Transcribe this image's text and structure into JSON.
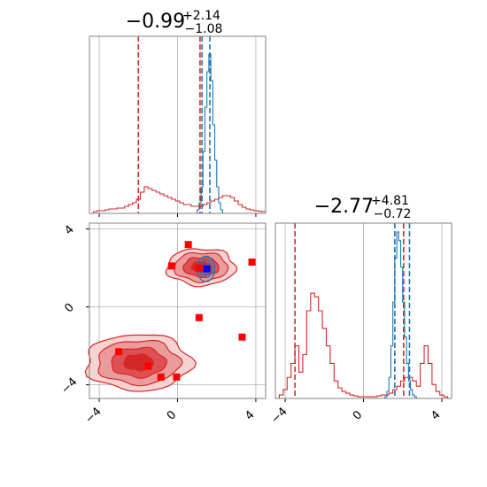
{
  "chart_data": {
    "type": "corner",
    "grid": true,
    "colors": {
      "red": "#d62728",
      "blue": "#1f77b4",
      "axis": "#808080",
      "grid": "#b0b0b0",
      "marker_red": "#ff0000",
      "marker_blue": "#0000ff"
    },
    "panels": [
      {
        "id": "p1_marginal",
        "type": "histogram-step",
        "title": {
          "main": "−0.99",
          "sup": "+2.14",
          "sub": "−1.08"
        },
        "xlim": [
          -4.5,
          4.5
        ],
        "ylim": [
          0,
          1.0
        ],
        "xticks": [
          -4,
          0,
          4
        ],
        "xtick_labels_shown": false,
        "series": [
          {
            "name": "",
            "color": "red",
            "bin_edges_start": -4.5,
            "bin_width": 0.2,
            "counts": [
              0,
              0.01,
              0.015,
              0.015,
              0.02,
              0.025,
              0.025,
              0.03,
              0.03,
              0.04,
              0.05,
              0.06,
              0.08,
              0.12,
              0.15,
              0.14,
              0.13,
              0.12,
              0.11,
              0.1,
              0.09,
              0.08,
              0.07,
              0.06,
              0.05,
              0.05,
              0.04,
              0.04,
              0.04,
              0.05,
              0.06,
              0.07,
              0.08,
              0.09,
              0.1,
              0.1,
              0.09,
              0.07,
              0.05,
              0.035,
              0.025,
              0.02,
              0.015,
              0.012,
              0.01
            ]
          },
          {
            "name": "",
            "color": "blue",
            "bin_edges_start": 0.9,
            "bin_width": 0.1,
            "counts": [
              0,
              0.02,
              0.06,
              0.15,
              0.35,
              0.6,
              0.8,
              0.9,
              0.75,
              0.5,
              0.3,
              0.15,
              0.06,
              0.02,
              0
            ]
          }
        ],
        "vlines": [
          {
            "x": -2.0,
            "color": "red"
          },
          {
            "x": 1.15,
            "color": "red"
          },
          {
            "x": 1.25,
            "color": "blue"
          },
          {
            "x": 1.65,
            "color": "blue"
          }
        ]
      },
      {
        "id": "p2_joint",
        "type": "contour",
        "xlim": [
          -4.5,
          4.5
        ],
        "ylim": [
          -4.7,
          4.3
        ],
        "xticks": [
          -4,
          0,
          4
        ],
        "yticks": [
          -4,
          0,
          4
        ],
        "xtick_labels": [
          "−4",
          "0",
          "4"
        ],
        "ytick_labels": [
          "−4",
          "0",
          "4"
        ],
        "red_markers": [
          [
            0.55,
            3.2
          ],
          [
            -0.3,
            2.1
          ],
          [
            1.1,
            2.0
          ],
          [
            3.8,
            2.3
          ],
          [
            1.1,
            -0.55
          ],
          [
            3.3,
            -1.55
          ],
          [
            -3.0,
            -2.3
          ],
          [
            -1.5,
            -3.05
          ],
          [
            -0.85,
            -3.6
          ],
          [
            -0.05,
            -3.6
          ]
        ],
        "blue_markers": [
          [
            1.5,
            1.95
          ]
        ],
        "red_modes": [
          {
            "cx": 1.2,
            "cy": 2.05,
            "rx": 1.75,
            "ry": 0.95
          },
          {
            "cx": -2.0,
            "cy": -2.85,
            "rx": 2.7,
            "ry": 1.45
          }
        ],
        "blue_modes": [
          {
            "cx": 1.45,
            "cy": 1.95,
            "rx": 0.45,
            "ry": 0.65
          }
        ]
      },
      {
        "id": "p3_marginal",
        "type": "histogram-step",
        "title": {
          "main": "−2.77",
          "sup": "+4.81",
          "sub": "−0.72"
        },
        "xlim": [
          -4.5,
          4.5
        ],
        "ylim": [
          0,
          1.0
        ],
        "xticks": [
          -4,
          0,
          4
        ],
        "xtick_labels": [
          "−4",
          "0",
          "4"
        ],
        "series": [
          {
            "name": "",
            "color": "red",
            "bin_edges_start": -4.5,
            "bin_width": 0.2,
            "counts": [
              0,
              0.02,
              0.05,
              0.12,
              0.2,
              0.3,
              0.15,
              0.25,
              0.5,
              0.6,
              0.58,
              0.5,
              0.4,
              0.3,
              0.2,
              0.1,
              0.06,
              0.04,
              0.03,
              0.02,
              0.015,
              0.01,
              0.01,
              0.01,
              0.01,
              0.01,
              0.015,
              0.02,
              0.02,
              0.03,
              0.05,
              0.07,
              0.1,
              0.12,
              0.12,
              0.1,
              0.07,
              0.2,
              0.3,
              0.2,
              0.08,
              0.04,
              0.02,
              0.01,
              0.0
            ]
          },
          {
            "name": "",
            "color": "blue",
            "bin_edges_start": 1.0,
            "bin_width": 0.1,
            "counts": [
              0,
              0.01,
              0.04,
              0.12,
              0.3,
              0.55,
              0.8,
              0.95,
              0.9,
              0.75,
              0.55,
              0.35,
              0.2,
              0.1,
              0.05,
              0.02,
              0.01,
              0
            ]
          }
        ],
        "vlines": [
          {
            "x": -3.5,
            "color": "red"
          },
          {
            "x": 1.6,
            "color": "blue"
          },
          {
            "x": 2.05,
            "color": "red"
          },
          {
            "x": 2.35,
            "color": "blue"
          }
        ]
      }
    ]
  }
}
